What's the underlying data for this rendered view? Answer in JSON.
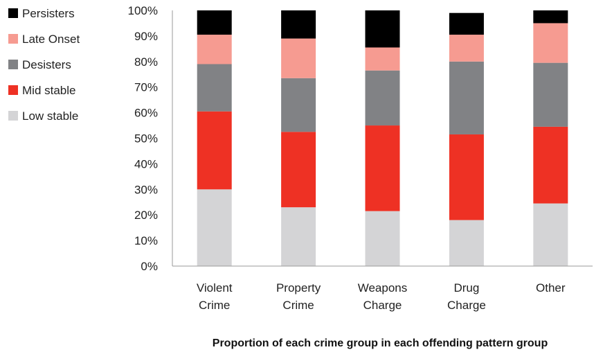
{
  "chart_data": {
    "type": "bar",
    "stacked": true,
    "title": "",
    "xlabel": "Proportion of each crime group in each offending pattern group",
    "ylabel": "",
    "ylim": [
      0,
      100
    ],
    "y_ticks": [
      "0%",
      "10%",
      "20%",
      "30%",
      "40%",
      "50%",
      "60%",
      "70%",
      "80%",
      "90%",
      "100%"
    ],
    "categories": [
      [
        "Violent",
        "Crime"
      ],
      [
        "Property",
        "Crime"
      ],
      [
        "Weapons",
        "Charge"
      ],
      [
        "Drug",
        "Charge"
      ],
      [
        "Other"
      ]
    ],
    "series": [
      {
        "name": "Low stable",
        "color": "#d4d4d6",
        "values": [
          30,
          23,
          21.5,
          18,
          24.5
        ]
      },
      {
        "name": "Mid stable",
        "color": "#ee3124",
        "values": [
          30.5,
          29.5,
          33.5,
          33.5,
          30
        ]
      },
      {
        "name": "Desisters",
        "color": "#818285",
        "values": [
          18.5,
          21,
          21.5,
          28.5,
          25
        ]
      },
      {
        "name": "Late Onset",
        "color": "#f69b91",
        "values": [
          11.5,
          15.5,
          9,
          10.5,
          15.5
        ]
      },
      {
        "name": "Persisters",
        "color": "#000000",
        "values": [
          9.5,
          11,
          14.5,
          8.5,
          5
        ]
      }
    ],
    "legend": {
      "placement": "top-left",
      "order": [
        "Persisters",
        "Late Onset",
        "Desisters",
        "Mid stable",
        "Low stable"
      ]
    },
    "grid": false
  }
}
